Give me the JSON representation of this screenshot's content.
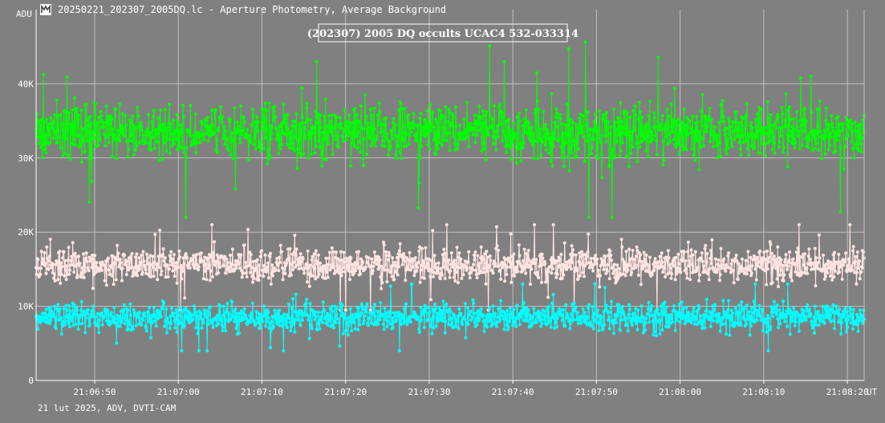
{
  "window": {
    "title": "20250221_202307_2005DQ.lc - Aperture Photometry, Average Background",
    "icon": "lightcurve-app-icon"
  },
  "footer": {
    "text": "21 lut 2025, ADV, DVTI-CAM"
  },
  "chart_data": {
    "type": "scatter",
    "title": "(202307) 2005 DQ occults UCAC4 532-033314",
    "ylabel": "ADU",
    "xunit": "UT",
    "ylim": [
      0,
      50000
    ],
    "xlim": [
      "21:06:43",
      "21:08:22"
    ],
    "grid": true,
    "y_ticks": [
      {
        "value": 0,
        "label": "0"
      },
      {
        "value": 10000,
        "label": "10K"
      },
      {
        "value": 20000,
        "label": "20K"
      },
      {
        "value": 30000,
        "label": "30K"
      },
      {
        "value": 40000,
        "label": "40K"
      }
    ],
    "x_ticks": [
      {
        "value": "21:06:50",
        "label": "21:06:50"
      },
      {
        "value": "21:07:00",
        "label": "21:07:00"
      },
      {
        "value": "21:07:10",
        "label": "21:07:10"
      },
      {
        "value": "21:07:20",
        "label": "21:07:20"
      },
      {
        "value": "21:07:30",
        "label": "21:07:30"
      },
      {
        "value": "21:07:40",
        "label": "21:07:40"
      },
      {
        "value": "21:07:50",
        "label": "21:07:50"
      },
      {
        "value": "21:08:00",
        "label": "21:08:00"
      },
      {
        "value": "21:08:10",
        "label": "21:08:10"
      },
      {
        "value": "21:08:20",
        "label": "21:08:20"
      }
    ],
    "series": [
      {
        "color": "#00ff00",
        "mean": 33500,
        "spread": 3000,
        "min": 22000,
        "max": 47000
      },
      {
        "color": "#ffe4e1",
        "mean": 15500,
        "spread": 1800,
        "min": 9500,
        "max": 21000
      },
      {
        "color": "#00ffff",
        "mean": 8500,
        "spread": 1500,
        "min": 4000,
        "max": 13000
      }
    ],
    "colors": {
      "grid": "#c0c0c0",
      "axis": "#ffffff",
      "background": "#808080"
    }
  }
}
